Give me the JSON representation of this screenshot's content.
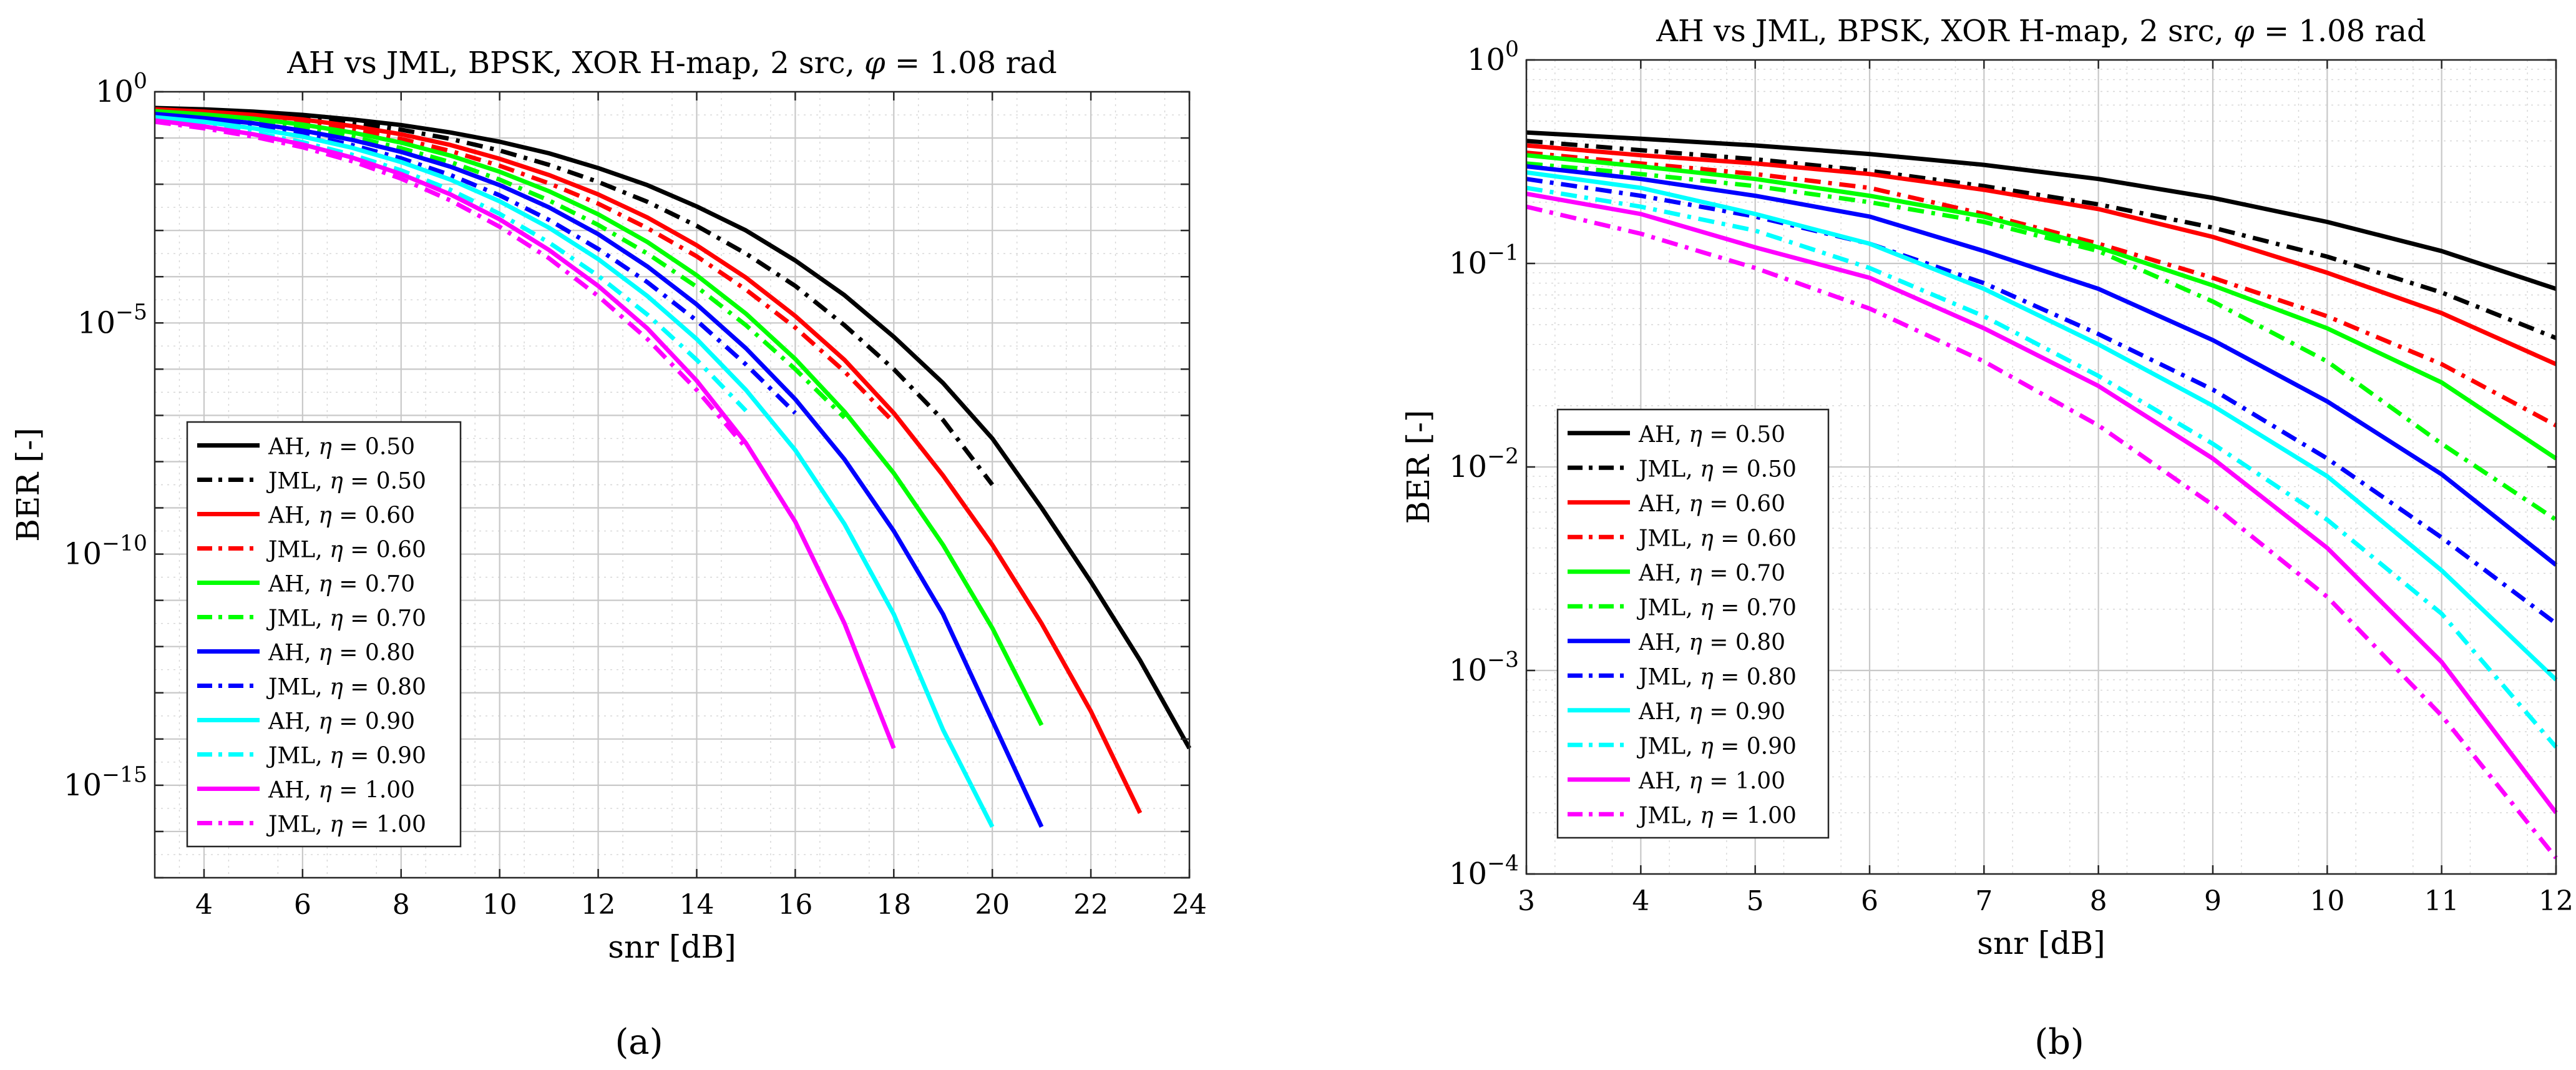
{
  "figure": {
    "panel_a_caption": "(a)",
    "panel_b_caption": "(b)"
  },
  "chart_data": [
    {
      "type": "line",
      "title": "AH vs JML, BPSK, XOR H-map, 2 src, φ = 1.08 rad",
      "xlabel": "snr [dB]",
      "ylabel": "BER [-]",
      "xlim": [
        3,
        24
      ],
      "ylim_exp": [
        -17,
        0
      ],
      "yscale": "log",
      "grid": "major+minor",
      "legend_position": "lower-left",
      "xticks": [
        4,
        6,
        8,
        10,
        12,
        14,
        16,
        18,
        20,
        22,
        24
      ],
      "yticks": [
        0,
        -5,
        -10,
        -15
      ],
      "ytick_labels": [
        "10^0",
        "10^-5",
        "10^-10",
        "10^-15"
      ],
      "series": [
        {
          "name": "AH, η = 0.50",
          "label": "AH, ",
          "eta": "0.50",
          "color": "#000000",
          "dash": "solid",
          "x": [
            3,
            4,
            5,
            6,
            7,
            8,
            9,
            10,
            11,
            12,
            13,
            14,
            15,
            16,
            17,
            18,
            19,
            20,
            21,
            22,
            23,
            24
          ],
          "y_log10": [
            -0.35,
            -0.38,
            -0.43,
            -0.5,
            -0.6,
            -0.72,
            -0.88,
            -1.08,
            -1.33,
            -1.65,
            -2.02,
            -2.48,
            -3.0,
            -3.65,
            -4.4,
            -5.3,
            -6.3,
            -7.5,
            -9.0,
            -10.6,
            -12.3,
            -14.2
          ]
        },
        {
          "name": "JML, η = 0.50",
          "label": "JML, ",
          "eta": "0.50",
          "color": "#000000",
          "dash": "dashdot",
          "x": [
            3,
            4,
            5,
            6,
            7,
            8,
            9,
            10,
            11,
            12,
            13,
            14,
            15,
            16,
            17,
            18,
            19,
            20
          ],
          "y_log10": [
            -0.36,
            -0.4,
            -0.46,
            -0.55,
            -0.66,
            -0.82,
            -1.02,
            -1.27,
            -1.58,
            -1.95,
            -2.38,
            -2.9,
            -3.5,
            -4.2,
            -5.05,
            -6.0,
            -7.1,
            -8.5
          ]
        },
        {
          "name": "AH, η = 0.60",
          "label": "AH, ",
          "eta": "0.60",
          "color": "#ff0000",
          "dash": "solid",
          "x": [
            3,
            4,
            5,
            6,
            7,
            8,
            9,
            10,
            11,
            12,
            13,
            14,
            15,
            16,
            17,
            18,
            19,
            20,
            21,
            22,
            23
          ],
          "y_log10": [
            -0.38,
            -0.43,
            -0.5,
            -0.6,
            -0.74,
            -0.92,
            -1.15,
            -1.45,
            -1.8,
            -2.22,
            -2.72,
            -3.32,
            -4.02,
            -4.85,
            -5.8,
            -6.95,
            -8.3,
            -9.8,
            -11.5,
            -13.4,
            -15.6
          ]
        },
        {
          "name": "JML, η = 0.60",
          "label": "JML, ",
          "eta": "0.60",
          "color": "#ff0000",
          "dash": "dashdot",
          "x": [
            3,
            4,
            5,
            6,
            7,
            8,
            9,
            10,
            11,
            12,
            13,
            14,
            15,
            16,
            17,
            18
          ],
          "y_log10": [
            -0.4,
            -0.46,
            -0.55,
            -0.67,
            -0.82,
            -1.02,
            -1.28,
            -1.6,
            -1.98,
            -2.42,
            -2.95,
            -3.56,
            -4.28,
            -5.1,
            -6.05,
            -7.15
          ]
        },
        {
          "name": "AH, η = 0.70",
          "label": "AH, ",
          "eta": "0.70",
          "color": "#00ff00",
          "dash": "solid",
          "x": [
            3,
            4,
            5,
            6,
            7,
            8,
            9,
            10,
            11,
            12,
            13,
            14,
            15,
            16,
            17,
            18,
            19,
            20,
            21
          ],
          "y_log10": [
            -0.42,
            -0.49,
            -0.58,
            -0.71,
            -0.88,
            -1.1,
            -1.38,
            -1.73,
            -2.15,
            -2.65,
            -3.25,
            -3.97,
            -4.8,
            -5.78,
            -6.92,
            -8.25,
            -9.8,
            -11.6,
            -13.7
          ]
        },
        {
          "name": "JML, η = 0.70",
          "label": "JML, ",
          "eta": "0.70",
          "color": "#00ff00",
          "dash": "dashdot",
          "x": [
            3,
            4,
            5,
            6,
            7,
            8,
            9,
            10,
            11,
            12,
            13,
            14,
            15,
            16,
            17
          ],
          "y_log10": [
            -0.45,
            -0.53,
            -0.64,
            -0.78,
            -0.97,
            -1.22,
            -1.52,
            -1.9,
            -2.35,
            -2.88,
            -3.5,
            -4.22,
            -5.05,
            -6.0,
            -7.05
          ]
        },
        {
          "name": "AH, η = 0.80",
          "label": "AH, ",
          "eta": "0.80",
          "color": "#0000ff",
          "dash": "solid",
          "x": [
            3,
            4,
            5,
            6,
            7,
            8,
            9,
            10,
            11,
            12,
            13,
            14,
            15,
            16,
            17,
            18,
            19,
            20,
            21
          ],
          "y_log10": [
            -0.48,
            -0.57,
            -0.68,
            -0.84,
            -1.04,
            -1.3,
            -1.62,
            -2.02,
            -2.5,
            -3.08,
            -3.78,
            -4.6,
            -5.55,
            -6.65,
            -7.95,
            -9.5,
            -11.3,
            -13.6,
            -15.9
          ]
        },
        {
          "name": "JML, η = 0.80",
          "label": "JML, ",
          "eta": "0.80",
          "color": "#0000ff",
          "dash": "dashdot",
          "x": [
            3,
            4,
            5,
            6,
            7,
            8,
            9,
            10,
            11,
            12,
            13,
            14,
            15,
            16
          ],
          "y_log10": [
            -0.52,
            -0.62,
            -0.75,
            -0.92,
            -1.15,
            -1.44,
            -1.8,
            -2.24,
            -2.77,
            -3.4,
            -4.12,
            -4.95,
            -5.9,
            -6.95
          ]
        },
        {
          "name": "AH, η = 0.90",
          "label": "AH, ",
          "eta": "0.90",
          "color": "#00ffff",
          "dash": "solid",
          "x": [
            3,
            4,
            5,
            6,
            7,
            8,
            9,
            10,
            11,
            12,
            13,
            14,
            15,
            16,
            17,
            18,
            19,
            20
          ],
          "y_log10": [
            -0.55,
            -0.65,
            -0.79,
            -0.97,
            -1.21,
            -1.52,
            -1.9,
            -2.37,
            -2.94,
            -3.62,
            -4.42,
            -5.35,
            -6.45,
            -7.75,
            -9.35,
            -11.3,
            -13.8,
            -15.9
          ]
        },
        {
          "name": "JML, η = 0.90",
          "label": "JML, ",
          "eta": "0.90",
          "color": "#00ffff",
          "dash": "dashdot",
          "x": [
            3,
            4,
            5,
            6,
            7,
            8,
            9,
            10,
            11,
            12,
            13,
            14,
            15
          ],
          "y_log10": [
            -0.6,
            -0.72,
            -0.88,
            -1.09,
            -1.36,
            -1.7,
            -2.12,
            -2.64,
            -3.26,
            -3.98,
            -4.82,
            -5.8,
            -6.9
          ]
        },
        {
          "name": "AH, η = 1.00",
          "label": "AH, ",
          "eta": "1.00",
          "color": "#ff00ff",
          "dash": "solid",
          "x": [
            3,
            4,
            5,
            6,
            7,
            8,
            9,
            10,
            11,
            12,
            13,
            14,
            15,
            16,
            17,
            18
          ],
          "y_log10": [
            -0.62,
            -0.75,
            -0.92,
            -1.14,
            -1.42,
            -1.78,
            -2.22,
            -2.76,
            -3.42,
            -4.2,
            -5.12,
            -6.25,
            -7.6,
            -9.3,
            -11.5,
            -14.2
          ]
        },
        {
          "name": "JML, η = 1.00",
          "label": "JML, ",
          "eta": "1.00",
          "color": "#ff00ff",
          "dash": "dashdot",
          "x": [
            3,
            4,
            5,
            6,
            7,
            8,
            9,
            10,
            11,
            12,
            13,
            14,
            15
          ],
          "y_log10": [
            -0.65,
            -0.79,
            -0.97,
            -1.2,
            -1.5,
            -1.88,
            -2.35,
            -2.92,
            -3.6,
            -4.42,
            -5.35,
            -6.45,
            -7.7
          ]
        }
      ]
    },
    {
      "type": "line",
      "title": "AH vs JML, BPSK, XOR H-map, 2 src, φ = 1.08 rad",
      "xlabel": "snr [dB]",
      "ylabel": "BER [-]",
      "xlim": [
        3,
        12
      ],
      "ylim_exp": [
        -4,
        0
      ],
      "yscale": "log",
      "grid": "major+minor",
      "legend_position": "lower-left",
      "xticks": [
        3,
        4,
        5,
        6,
        7,
        8,
        9,
        10,
        11,
        12
      ],
      "yticks": [
        0,
        -1,
        -2,
        -3,
        -4
      ],
      "ytick_labels": [
        "10^0",
        "10^-1",
        "10^-2",
        "10^-3",
        "10^-4"
      ],
      "series": [
        {
          "name": "AH, η = 0.50",
          "label": "AH, ",
          "eta": "0.50",
          "color": "#000000",
          "dash": "solid",
          "x": [
            3,
            4,
            5,
            6,
            7,
            8,
            9,
            10,
            11,
            12
          ],
          "y": [
            0.44,
            0.41,
            0.38,
            0.345,
            0.305,
            0.26,
            0.21,
            0.16,
            0.115,
            0.075
          ]
        },
        {
          "name": "JML, η = 0.50",
          "label": "JML, ",
          "eta": "0.50",
          "color": "#000000",
          "dash": "dashdot",
          "x": [
            3,
            4,
            5,
            6,
            7,
            8,
            9,
            10,
            11,
            12
          ],
          "y": [
            0.4,
            0.36,
            0.325,
            0.285,
            0.24,
            0.195,
            0.15,
            0.108,
            0.072,
            0.043
          ]
        },
        {
          "name": "AH, η = 0.60",
          "label": "AH, ",
          "eta": "0.60",
          "color": "#ff0000",
          "dash": "solid",
          "x": [
            3,
            4,
            5,
            6,
            7,
            8,
            9,
            10,
            11,
            12
          ],
          "y": [
            0.38,
            0.34,
            0.31,
            0.275,
            0.23,
            0.185,
            0.135,
            0.09,
            0.057,
            0.032
          ]
        },
        {
          "name": "JML, η = 0.60",
          "label": "JML, ",
          "eta": "0.60",
          "color": "#ff0000",
          "dash": "dashdot",
          "x": [
            3,
            4,
            5,
            6,
            7,
            8,
            9,
            10,
            11,
            12
          ],
          "y": [
            0.35,
            0.31,
            0.275,
            0.235,
            0.175,
            0.125,
            0.085,
            0.055,
            0.032,
            0.016
          ]
        },
        {
          "name": "AH, η = 0.70",
          "label": "AH, ",
          "eta": "0.70",
          "color": "#00ff00",
          "dash": "solid",
          "x": [
            3,
            4,
            5,
            6,
            7,
            8,
            9,
            10,
            11,
            12
          ],
          "y": [
            0.34,
            0.3,
            0.26,
            0.215,
            0.17,
            0.12,
            0.078,
            0.048,
            0.026,
            0.011
          ]
        },
        {
          "name": "JML, η = 0.70",
          "label": "JML, ",
          "eta": "0.70",
          "color": "#00ff00",
          "dash": "dashdot",
          "x": [
            3,
            4,
            5,
            6,
            7,
            8,
            9,
            10,
            11,
            12
          ],
          "y": [
            0.31,
            0.275,
            0.24,
            0.2,
            0.16,
            0.115,
            0.065,
            0.033,
            0.013,
            0.0055
          ]
        },
        {
          "name": "AH, η = 0.80",
          "label": "AH, ",
          "eta": "0.80",
          "color": "#0000ff",
          "dash": "solid",
          "x": [
            3,
            4,
            5,
            6,
            7,
            8,
            9,
            10,
            11,
            12
          ],
          "y": [
            0.3,
            0.26,
            0.215,
            0.17,
            0.115,
            0.075,
            0.042,
            0.021,
            0.0092,
            0.0033
          ]
        },
        {
          "name": "JML, η = 0.80",
          "label": "JML, ",
          "eta": "0.80",
          "color": "#0000ff",
          "dash": "dashdot",
          "x": [
            3,
            4,
            5,
            6,
            7,
            8,
            9,
            10,
            11,
            12
          ],
          "y": [
            0.26,
            0.215,
            0.17,
            0.125,
            0.08,
            0.045,
            0.024,
            0.011,
            0.0045,
            0.0017
          ]
        },
        {
          "name": "AH, η = 0.90",
          "label": "AH, ",
          "eta": "0.90",
          "color": "#00ffff",
          "dash": "solid",
          "x": [
            3,
            4,
            5,
            6,
            7,
            8,
            9,
            10,
            11,
            12
          ],
          "y": [
            0.28,
            0.235,
            0.175,
            0.125,
            0.075,
            0.04,
            0.02,
            0.009,
            0.0031,
            0.0009
          ]
        },
        {
          "name": "JML, η = 0.90",
          "label": "JML, ",
          "eta": "0.90",
          "color": "#00ffff",
          "dash": "dashdot",
          "x": [
            3,
            4,
            5,
            6,
            7,
            8,
            9,
            10,
            11,
            12
          ],
          "y": [
            0.235,
            0.19,
            0.145,
            0.095,
            0.055,
            0.028,
            0.013,
            0.0055,
            0.0019,
            0.00042
          ]
        },
        {
          "name": "AH, η = 1.00",
          "label": "AH, ",
          "eta": "1.00",
          "color": "#ff00ff",
          "dash": "solid",
          "x": [
            3,
            4,
            5,
            6,
            7,
            8,
            9,
            10,
            11,
            12
          ],
          "y": [
            0.22,
            0.175,
            0.12,
            0.085,
            0.048,
            0.025,
            0.011,
            0.004,
            0.0011,
            0.0002
          ]
        },
        {
          "name": "JML, η = 1.00",
          "label": "JML, ",
          "eta": "1.00",
          "color": "#ff00ff",
          "dash": "dashdot",
          "x": [
            3,
            4,
            5,
            6,
            7,
            8,
            9,
            10,
            11,
            12
          ],
          "y": [
            0.19,
            0.14,
            0.095,
            0.06,
            0.033,
            0.016,
            0.0065,
            0.0023,
            0.0006,
            0.00012
          ]
        }
      ]
    }
  ]
}
